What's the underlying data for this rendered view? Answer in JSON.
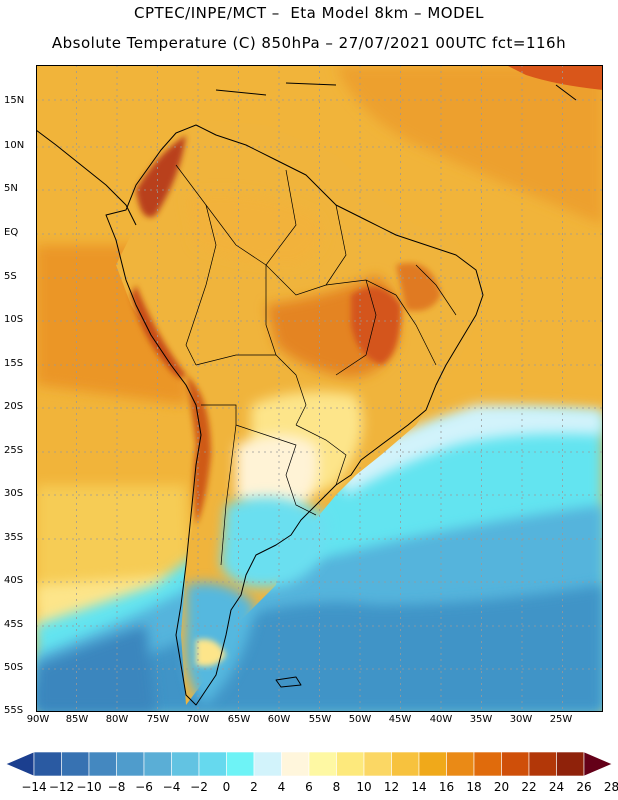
{
  "header": {
    "line1": "CPTEC/INPE/MCT –  Eta Model 8km – MODEL",
    "line2": "Absolute Temperature (C) 850hPa – 27/07/2021 00UTC fct=116h"
  },
  "map": {
    "lat_labels": [
      "15N",
      "10N",
      "5N",
      "EQ",
      "5S",
      "10S",
      "15S",
      "20S",
      "25S",
      "30S",
      "35S",
      "40S",
      "45S",
      "50S",
      "55S"
    ],
    "lon_labels": [
      "90W",
      "85W",
      "80W",
      "75W",
      "70W",
      "65W",
      "60W",
      "55W",
      "50W",
      "45W",
      "40W",
      "35W",
      "30W",
      "25W"
    ],
    "gridlines": true
  },
  "colorbar": {
    "labels": [
      "-14",
      "-12",
      "-10",
      "-8",
      "-6",
      "-4",
      "-2",
      "0",
      "2",
      "4",
      "6",
      "8",
      "10",
      "12",
      "14",
      "16",
      "18",
      "20",
      "22",
      "24",
      "26",
      "28"
    ],
    "colors": [
      "#1b3f8f",
      "#2a5aa2",
      "#3772b2",
      "#4488c0",
      "#4f9ccc",
      "#5aaed6",
      "#62c3e2",
      "#66d9ee",
      "#6ef3f6",
      "#d2f3fb",
      "#fff6dc",
      "#fef8a3",
      "#fde97c",
      "#fbd764",
      "#f7c23e",
      "#f0a91a",
      "#ea8a16",
      "#e06b0c",
      "#cf4f09",
      "#b23708",
      "#8f220a",
      "#640018"
    ]
  },
  "colors": {
    "ocean_warm": "#f1b43a",
    "ocean_warmer": "#eda02e",
    "land_hot": "#e2721c",
    "cold_sea": "#3f94c7",
    "cyan": "#63e4f0"
  }
}
